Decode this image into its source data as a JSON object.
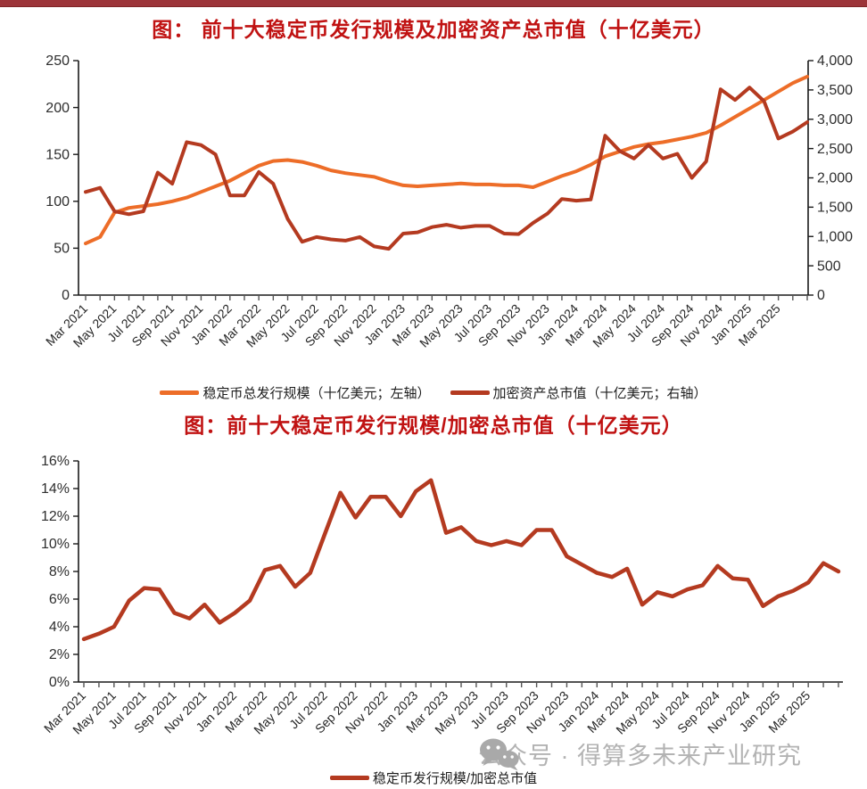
{
  "page": {
    "top_bar_color": "#9c3439",
    "title_color": "#c01212",
    "background": "#ffffff",
    "axis_text_color": "#2e2e2e"
  },
  "watermark": {
    "icon": "wechat-icon",
    "text": "公众号 · 得算多未来产业研究",
    "color": "#b3b3b3"
  },
  "chart_data": [
    {
      "type": "line",
      "title": "图： 前十大稳定币发行规模及加密资产总市值（十亿美元）",
      "x": [
        "Mar 2021",
        "Apr 2021",
        "May 2021",
        "Jun 2021",
        "Jul 2021",
        "Aug 2021",
        "Sep 2021",
        "Oct 2021",
        "Nov 2021",
        "Dec 2021",
        "Jan 2022",
        "Feb 2022",
        "Mar 2022",
        "Apr 2022",
        "May 2022",
        "Jun 2022",
        "Jul 2022",
        "Aug 2022",
        "Sep 2022",
        "Oct 2022",
        "Nov 2022",
        "Dec 2022",
        "Jan 2023",
        "Feb 2023",
        "Mar 2023",
        "Apr 2023",
        "May 2023",
        "Jun 2023",
        "Jul 2023",
        "Aug 2023",
        "Sep 2023",
        "Oct 2023",
        "Nov 2023",
        "Dec 2023",
        "Jan 2024",
        "Feb 2024",
        "Mar 2024",
        "Apr 2024",
        "May 2024",
        "Jun 2024",
        "Jul 2024",
        "Aug 2024",
        "Sep 2024",
        "Oct 2024",
        "Nov 2024",
        "Dec 2024",
        "Jan 2025",
        "Feb 2025",
        "Mar 2025",
        "Apr 2025",
        "May 2025"
      ],
      "x_tick_labels_shown": [
        "Mar 2021",
        "May 2021",
        "Jul 2021",
        "Sep 2021",
        "Nov 2021",
        "Jan 2022",
        "Mar 2022",
        "May 2022",
        "Jul 2022",
        "Sep 2022",
        "Nov 2022",
        "Jan 2023",
        "Mar 2023",
        "May 2023",
        "Jul 2023",
        "Sep 2023",
        "Nov 2023",
        "Jan 2024",
        "Mar 2024",
        "May 2024",
        "Jul 2024",
        "Sep 2024",
        "Nov 2024",
        "Jan 2025",
        "Mar 2025"
      ],
      "left_axis": {
        "min": 0,
        "max": 250,
        "step": 50,
        "labels": [
          "250",
          "200",
          "150",
          "100",
          "50",
          "0"
        ]
      },
      "right_axis": {
        "min": 0,
        "max": 4000,
        "step": 500,
        "labels": [
          "4,000",
          "3,500",
          "3,000",
          "2,500",
          "2,000",
          "1,500",
          "1,000",
          "500",
          "0"
        ]
      },
      "grid": false,
      "legend_position": "bottom",
      "series": [
        {
          "name": "稳定币总发行规模（十亿美元；左轴）",
          "axis": "left",
          "color": "#ED6D28",
          "values": [
            55,
            62,
            88,
            93,
            95,
            97,
            100,
            104,
            110,
            116,
            122,
            130,
            138,
            143,
            144,
            142,
            138,
            133,
            130,
            128,
            126,
            121,
            117,
            116,
            117,
            118,
            119,
            118,
            118,
            117,
            117,
            115,
            121,
            127,
            132,
            139,
            148,
            153,
            158,
            161,
            163,
            166,
            169,
            173,
            181,
            190,
            199,
            208,
            217,
            226,
            233
          ]
        },
        {
          "name": "加密资产总市值（十亿美元；右轴）",
          "axis": "right",
          "color": "#B43A20",
          "values": [
            1760,
            1830,
            1430,
            1380,
            1430,
            2090,
            1900,
            2610,
            2560,
            2400,
            1700,
            1700,
            2100,
            1900,
            1300,
            910,
            990,
            950,
            930,
            990,
            830,
            790,
            1050,
            1070,
            1160,
            1200,
            1150,
            1180,
            1180,
            1050,
            1040,
            1230,
            1390,
            1640,
            1610,
            1630,
            2720,
            2460,
            2330,
            2560,
            2330,
            2410,
            2000,
            2280,
            3510,
            3330,
            3540,
            3310,
            2670,
            2790,
            2950
          ]
        }
      ]
    },
    {
      "type": "line",
      "title": "图：前十大稳定币发行规模/加密总市值（十亿美元）",
      "x": [
        "Mar 2021",
        "Apr 2021",
        "May 2021",
        "Jun 2021",
        "Jul 2021",
        "Aug 2021",
        "Sep 2021",
        "Oct 2021",
        "Nov 2021",
        "Dec 2021",
        "Jan 2022",
        "Feb 2022",
        "Mar 2022",
        "Apr 2022",
        "May 2022",
        "Jun 2022",
        "Jul 2022",
        "Aug 2022",
        "Sep 2022",
        "Oct 2022",
        "Nov 2022",
        "Dec 2022",
        "Jan 2023",
        "Feb 2023",
        "Mar 2023",
        "Apr 2023",
        "May 2023",
        "Jun 2023",
        "Jul 2023",
        "Aug 2023",
        "Sep 2023",
        "Oct 2023",
        "Nov 2023",
        "Dec 2023",
        "Jan 2024",
        "Feb 2024",
        "Mar 2024",
        "Apr 2024",
        "May 2024",
        "Jun 2024",
        "Jul 2024",
        "Aug 2024",
        "Sep 2024",
        "Oct 2024",
        "Nov 2024",
        "Dec 2024",
        "Jan 2025",
        "Feb 2025",
        "Mar 2025",
        "Apr 2025",
        "May 2025"
      ],
      "x_tick_labels_shown": [
        "Mar 2021",
        "May 2021",
        "Jul 2021",
        "Sep 2021",
        "Nov 2021",
        "Jan 2022",
        "Mar 2022",
        "May 2022",
        "Jul 2022",
        "Sep 2022",
        "Nov 2022",
        "Jan 2023",
        "Mar 2023",
        "May 2023",
        "Jul 2023",
        "Sep 2023",
        "Nov 2023",
        "Jan 2024",
        "Mar 2024",
        "May 2024",
        "Jul 2024",
        "Sep 2024",
        "Nov 2024",
        "Jan 2025",
        "Mar 2025"
      ],
      "y_axis": {
        "min": 0,
        "max": 16,
        "step": 2,
        "labels": [
          "16%",
          "14%",
          "12%",
          "10%",
          "8%",
          "6%",
          "4%",
          "2%",
          "0%"
        ],
        "unit": "%"
      },
      "grid": false,
      "legend_position": "bottom",
      "series": [
        {
          "name": "稳定币发行规模/加密总市值",
          "axis": "left",
          "color": "#B43A20",
          "values": [
            3.1,
            3.5,
            4.0,
            5.9,
            6.8,
            6.7,
            5.0,
            4.6,
            5.6,
            4.3,
            5.0,
            5.9,
            8.1,
            8.4,
            6.9,
            7.9,
            10.8,
            13.7,
            11.9,
            13.4,
            13.4,
            12.0,
            13.8,
            14.6,
            10.8,
            11.2,
            10.2,
            9.9,
            10.2,
            9.9,
            11.0,
            11.0,
            9.1,
            8.5,
            7.9,
            7.6,
            8.2,
            5.6,
            6.5,
            6.2,
            6.7,
            7.0,
            8.4,
            7.5,
            7.4,
            5.5,
            6.2,
            6.6,
            7.2,
            8.6,
            8.0
          ]
        }
      ]
    }
  ]
}
